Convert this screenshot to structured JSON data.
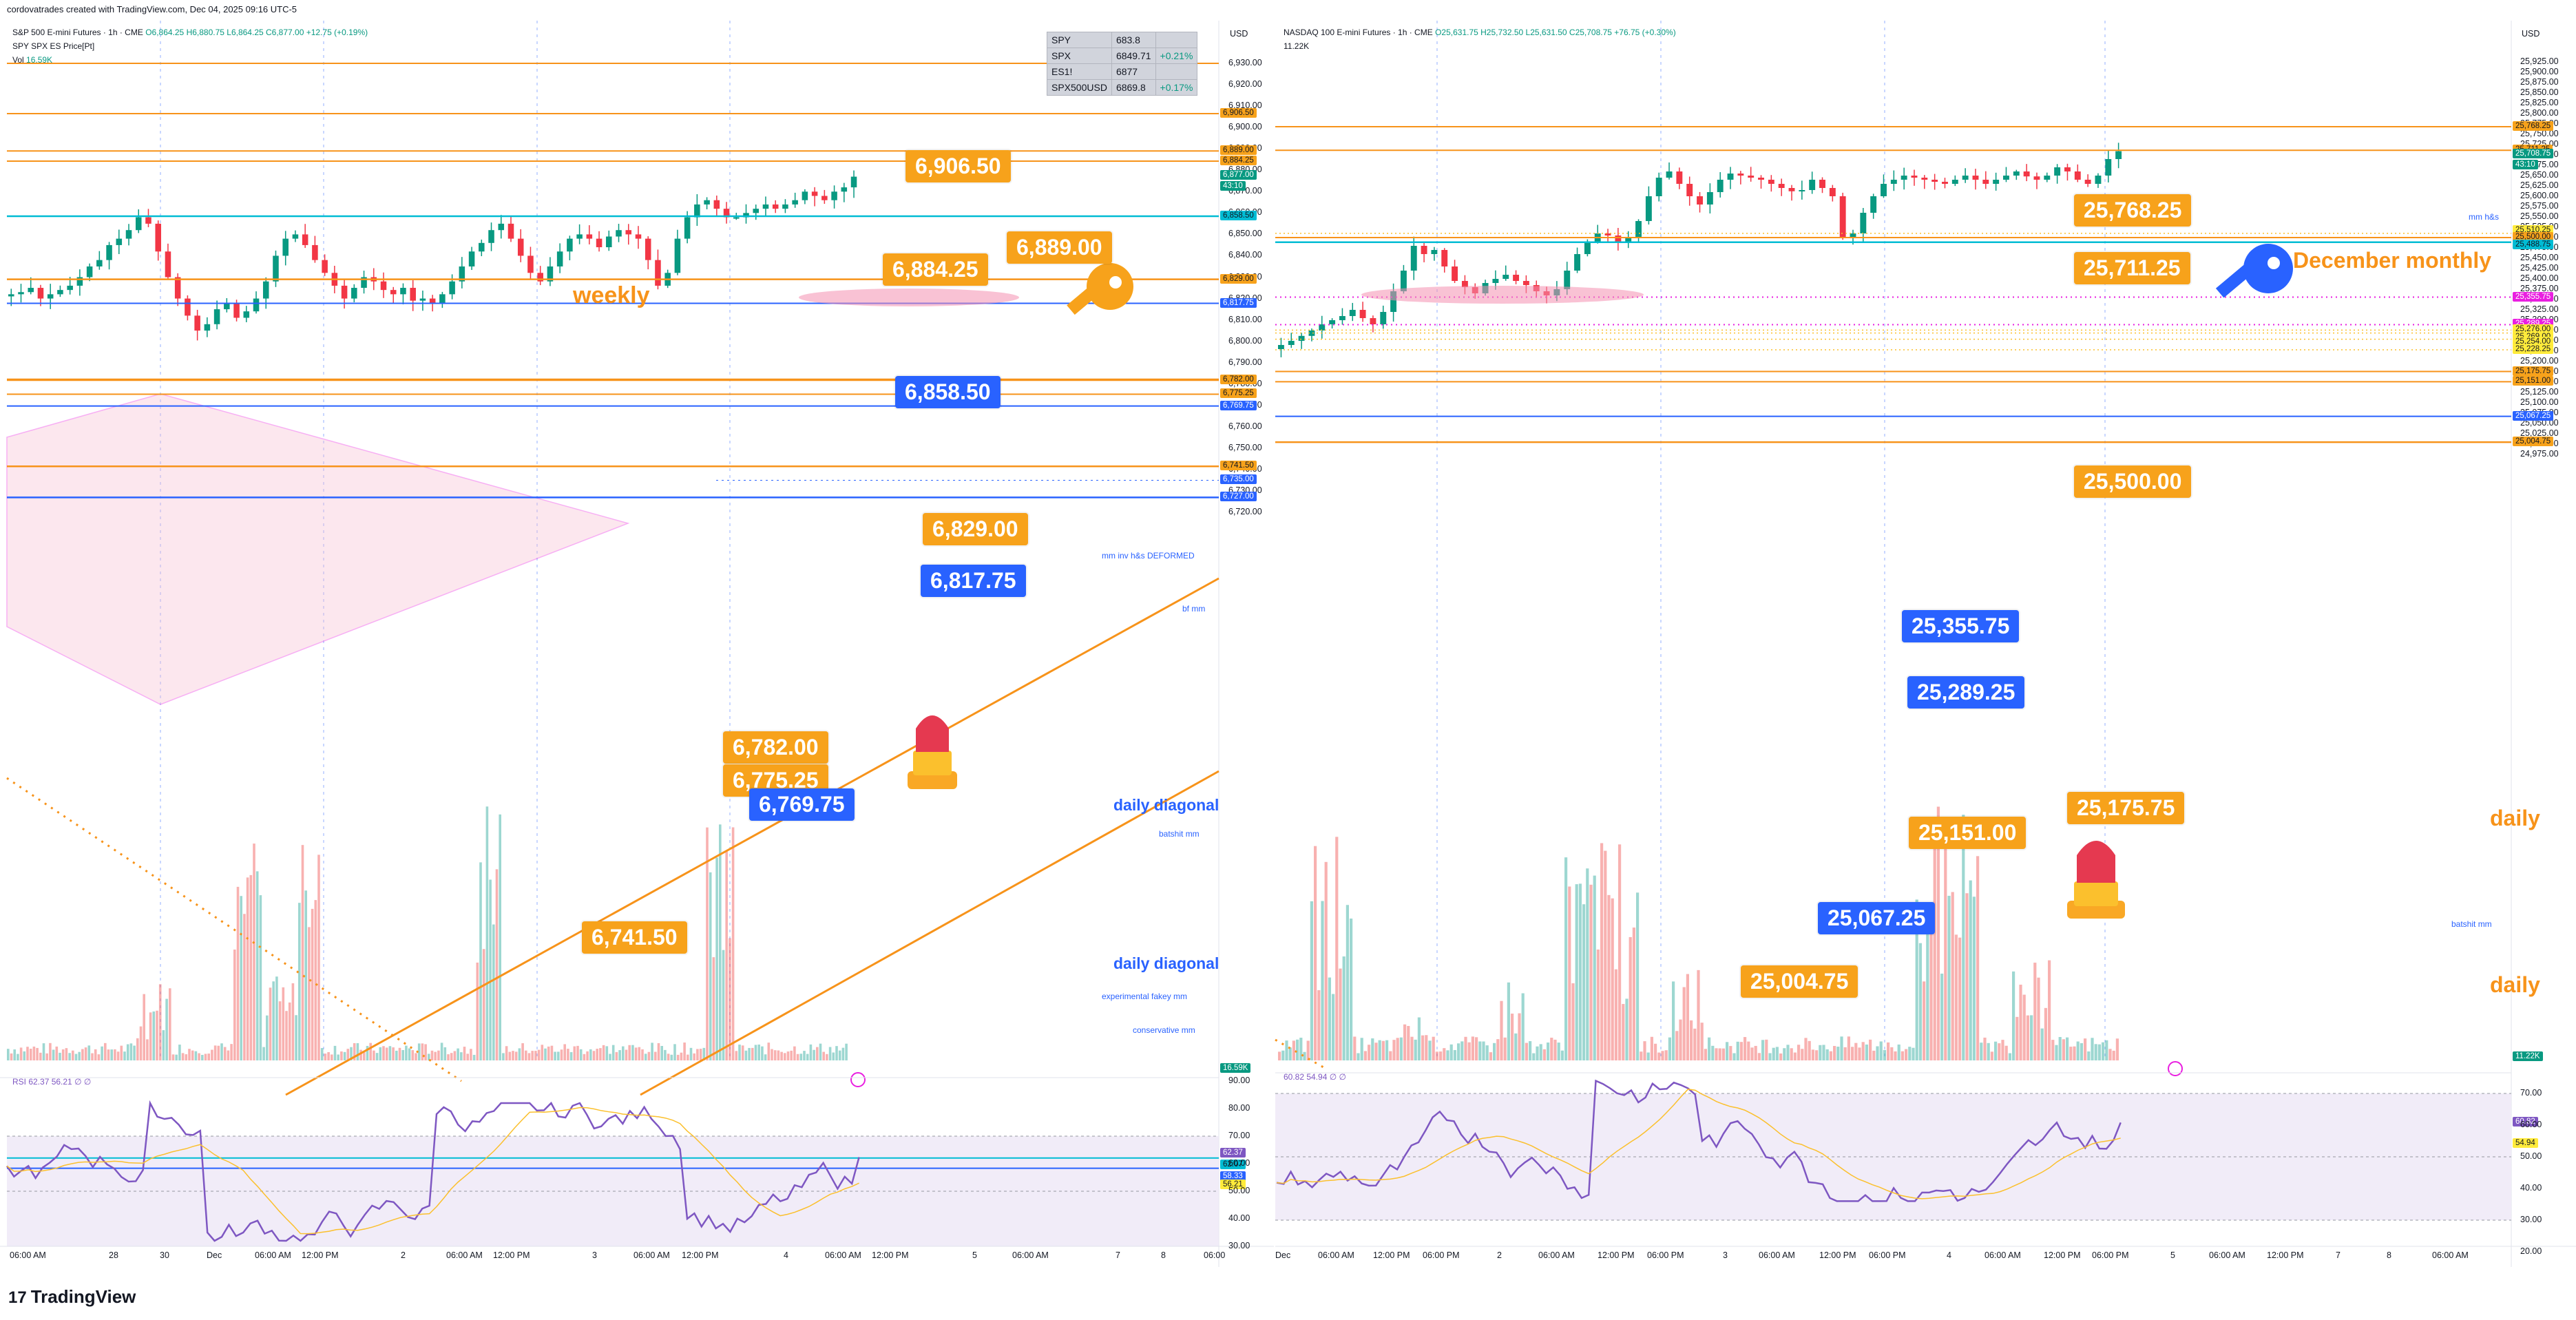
{
  "header": {
    "caption": "cordovatrades created with TradingView.com, Dec 04, 2025 09:16 UTC-5"
  },
  "footer": {
    "brand": "TradingView",
    "logo_mark": "17"
  },
  "left_chart": {
    "title": "S&P 500 E-mini Futures · 1h · CME",
    "ohlc": "O6,864.25 H6,880.75 L6,864.25 C6,877.00 +12.75 (+0.19%)",
    "indicator1": "SPY SPX ES Price[Pt]",
    "vol_label": "Vol",
    "vol_value": "16.59K",
    "currency": "USD",
    "price_axis": [
      "6,930.00",
      "6,920.00",
      "6,910.00",
      "6,900.00",
      "6,890.00",
      "6,880.00",
      "6,870.00",
      "6,860.00",
      "6,850.00",
      "6,840.00",
      "6,830.00",
      "6,820.00",
      "6,810.00",
      "6,800.00",
      "6,790.00",
      "6,780.00",
      "6,770.00",
      "6,760.00",
      "6,750.00",
      "6,740.00",
      "6,730.00",
      "6,720.00"
    ],
    "rsi_axis": [
      "90.00",
      "80.00",
      "70.00",
      "60.00",
      "50.00",
      "40.00",
      "30.00"
    ],
    "time_axis": [
      "06:00 AM",
      "28",
      "30",
      "Dec",
      "06:00 AM",
      "12:00 PM",
      "2",
      "06:00 AM",
      "12:00 PM",
      "3",
      "06:00 AM",
      "12:00 PM",
      "4",
      "06:00 AM",
      "12:00 PM",
      "5",
      "06:00 AM",
      "7",
      "8",
      "06:00"
    ],
    "quote_table": [
      {
        "symbol": "SPY",
        "price": "683.8",
        "change": ""
      },
      {
        "symbol": "SPX",
        "price": "6849.71",
        "change": "+0.21%"
      },
      {
        "symbol": "ES1!",
        "price": "6877",
        "change": ""
      },
      {
        "symbol": "SPX500USD",
        "price": "6869.8",
        "change": "+0.17%"
      }
    ],
    "callouts": [
      {
        "text": "6,906.50",
        "color": "orange"
      },
      {
        "text": "6,889.00",
        "color": "orange"
      },
      {
        "text": "6,884.25",
        "color": "orange"
      },
      {
        "text": "6,858.50",
        "color": "blue"
      },
      {
        "text": "6,829.00",
        "color": "orange"
      },
      {
        "text": "6,817.75",
        "color": "blue"
      },
      {
        "text": "6,782.00",
        "color": "orange"
      },
      {
        "text": "6,775.25",
        "color": "orange"
      },
      {
        "text": "6,769.75",
        "color": "blue"
      },
      {
        "text": "6,741.50",
        "color": "orange"
      }
    ],
    "line_labels": {
      "weekly": "weekly",
      "daily_diagonal_1": "daily diagonal",
      "daily_diagonal_2": "daily diagonal",
      "mm_inv": "mm inv h&s  DEFORMED",
      "bf_mm": "bf mm",
      "batshit_mm": "batshit mm",
      "experimental": "experimental fakey mm",
      "conservative": "conservative mm"
    },
    "price_tags": [
      {
        "text": "6,906.50",
        "bg": "#f7a21b",
        "fg": "#131722"
      },
      {
        "text": "6,889.00",
        "bg": "#f7a21b",
        "fg": "#131722"
      },
      {
        "text": "6,884.25",
        "bg": "#f7a21b",
        "fg": "#131722"
      },
      {
        "text": "6,877.00",
        "bg": "#089981",
        "fg": "#ffffff"
      },
      {
        "text": "43:10",
        "bg": "#089981",
        "fg": "#ffffff"
      },
      {
        "text": "6,858.50",
        "bg": "#00bcd4",
        "fg": "#131722"
      },
      {
        "text": "6,829.00",
        "bg": "#f7a21b",
        "fg": "#131722"
      },
      {
        "text": "6,817.75",
        "bg": "#2962ff",
        "fg": "#ffffff"
      },
      {
        "text": "6,782.00",
        "bg": "#f7a21b",
        "fg": "#131722"
      },
      {
        "text": "6,775.25",
        "bg": "#f7a21b",
        "fg": "#131722"
      },
      {
        "text": "6,769.75",
        "bg": "#2962ff",
        "fg": "#ffffff"
      },
      {
        "text": "6,741.50",
        "bg": "#f7a21b",
        "fg": "#131722"
      },
      {
        "text": "6,735.00",
        "bg": "#2962ff",
        "fg": "#ffffff"
      },
      {
        "text": "6,727.00",
        "bg": "#2962ff",
        "fg": "#ffffff"
      },
      {
        "text": "16.59K",
        "bg": "#089981",
        "fg": "#ffffff"
      }
    ],
    "rsi_tags": [
      {
        "text": "62.37",
        "bg": "#7e57c2",
        "fg": "#ffffff"
      },
      {
        "text": "62.07",
        "bg": "#00bcd4",
        "fg": "#131722"
      },
      {
        "text": "58.33",
        "bg": "#2962ff",
        "fg": "#ffffff"
      },
      {
        "text": "56.21",
        "bg": "#ffeb3b",
        "fg": "#131722"
      }
    ],
    "rsi_legend": "RSI  62.37  56.21  ∅  ∅"
  },
  "right_chart": {
    "title": "NASDAQ 100 E-mini Futures · 1h · CME",
    "ohlc": "O25,631.75 H25,732.50 L25,631.50 C25,708.75 +76.75 (+0.30%)",
    "vol_value": "11.22K",
    "currency": "USD",
    "price_axis": [
      "25,925.00",
      "25,900.00",
      "25,875.00",
      "25,850.00",
      "25,825.00",
      "25,800.00",
      "25,775.00",
      "25,750.00",
      "25,725.00",
      "25,700.00",
      "25,675.00",
      "25,650.00",
      "25,625.00",
      "25,600.00",
      "25,575.00",
      "25,550.00",
      "25,525.00",
      "25,500.00",
      "25,475.00",
      "25,450.00",
      "25,425.00",
      "25,400.00",
      "25,375.00",
      "25,350.00",
      "25,325.00",
      "25,300.00",
      "25,275.00",
      "25,250.00",
      "25,225.00",
      "25,200.00",
      "25,175.00",
      "25,150.00",
      "25,125.00",
      "25,100.00",
      "25,075.00",
      "25,050.00",
      "25,025.00",
      "25,000.00",
      "24,975.00"
    ],
    "rsi_axis": [
      "70.00",
      "60.00",
      "50.00",
      "40.00",
      "30.00",
      "20.00"
    ],
    "time_axis": [
      "Dec",
      "06:00 AM",
      "12:00 PM",
      "06:00 PM",
      "2",
      "06:00 AM",
      "12:00 PM",
      "06:00 PM",
      "3",
      "06:00 AM",
      "12:00 PM",
      "06:00 PM",
      "4",
      "06:00 AM",
      "12:00 PM",
      "06:00 PM",
      "5",
      "06:00 AM",
      "12:00 PM",
      "7",
      "8",
      "06:00 AM"
    ],
    "callouts": [
      {
        "text": "25,768.25",
        "color": "orange"
      },
      {
        "text": "25,711.25",
        "color": "orange"
      },
      {
        "text": "25,500.00",
        "color": "orange"
      },
      {
        "text": "25,355.75",
        "color": "blue"
      },
      {
        "text": "25,289.25",
        "color": "blue"
      },
      {
        "text": "25,175.75",
        "color": "orange"
      },
      {
        "text": "25,151.00",
        "color": "orange"
      },
      {
        "text": "25,067.25",
        "color": "blue"
      },
      {
        "text": "25,004.75",
        "color": "orange"
      }
    ],
    "line_labels": {
      "december_monthly": "December monthly",
      "daily_1": "daily",
      "daily_2": "daily",
      "mm_hs": "mm h&s",
      "batshit_mm": "batshit mm"
    },
    "price_tags": [
      {
        "text": "25,768.25",
        "bg": "#f7a21b",
        "fg": "#131722"
      },
      {
        "text": "25,711.25",
        "bg": "#f7a21b",
        "fg": "#131722"
      },
      {
        "text": "25,708.75",
        "bg": "#089981",
        "fg": "#ffffff"
      },
      {
        "text": "43:10",
        "bg": "#089981",
        "fg": "#ffffff"
      },
      {
        "text": "25,510.25",
        "bg": "#ffeb3b",
        "fg": "#131722"
      },
      {
        "text": "25,500.00",
        "bg": "#f7a21b",
        "fg": "#131722"
      },
      {
        "text": "25,488.75",
        "bg": "#00bcd4",
        "fg": "#131722"
      },
      {
        "text": "25,355.75",
        "bg": "#e91ee0",
        "fg": "#ffffff"
      },
      {
        "text": "25,289.25",
        "bg": "#e91ee0",
        "fg": "#ffffff"
      },
      {
        "text": "25,276.00",
        "bg": "#ffeb3b",
        "fg": "#131722"
      },
      {
        "text": "25,269.00",
        "bg": "#ffeb3b",
        "fg": "#131722"
      },
      {
        "text": "25,254.00",
        "bg": "#ffeb3b",
        "fg": "#131722"
      },
      {
        "text": "25,228.25",
        "bg": "#ffeb3b",
        "fg": "#131722"
      },
      {
        "text": "25,175.75",
        "bg": "#f7a21b",
        "fg": "#131722"
      },
      {
        "text": "25,151.00",
        "bg": "#f7a21b",
        "fg": "#131722"
      },
      {
        "text": "25,067.25",
        "bg": "#2962ff",
        "fg": "#ffffff"
      },
      {
        "text": "25,004.75",
        "bg": "#f7a21b",
        "fg": "#131722"
      },
      {
        "text": "11.22K",
        "bg": "#089981",
        "fg": "#ffffff"
      }
    ],
    "rsi_tags": [
      {
        "text": "60.82",
        "bg": "#7e57c2",
        "fg": "#ffffff"
      },
      {
        "text": "54.94",
        "bg": "#ffeb3b",
        "fg": "#131722"
      }
    ],
    "rsi_legend": "60.82  54.94  ∅  ∅"
  },
  "colors": {
    "orange": "#f7931a",
    "blue": "#2962ff",
    "cyan": "#00bcd4",
    "up": "#089981",
    "down": "#f23645",
    "magenta": "#e91ee0",
    "rsi": "#7e57c2",
    "rsi_band": "#ede7f6"
  }
}
